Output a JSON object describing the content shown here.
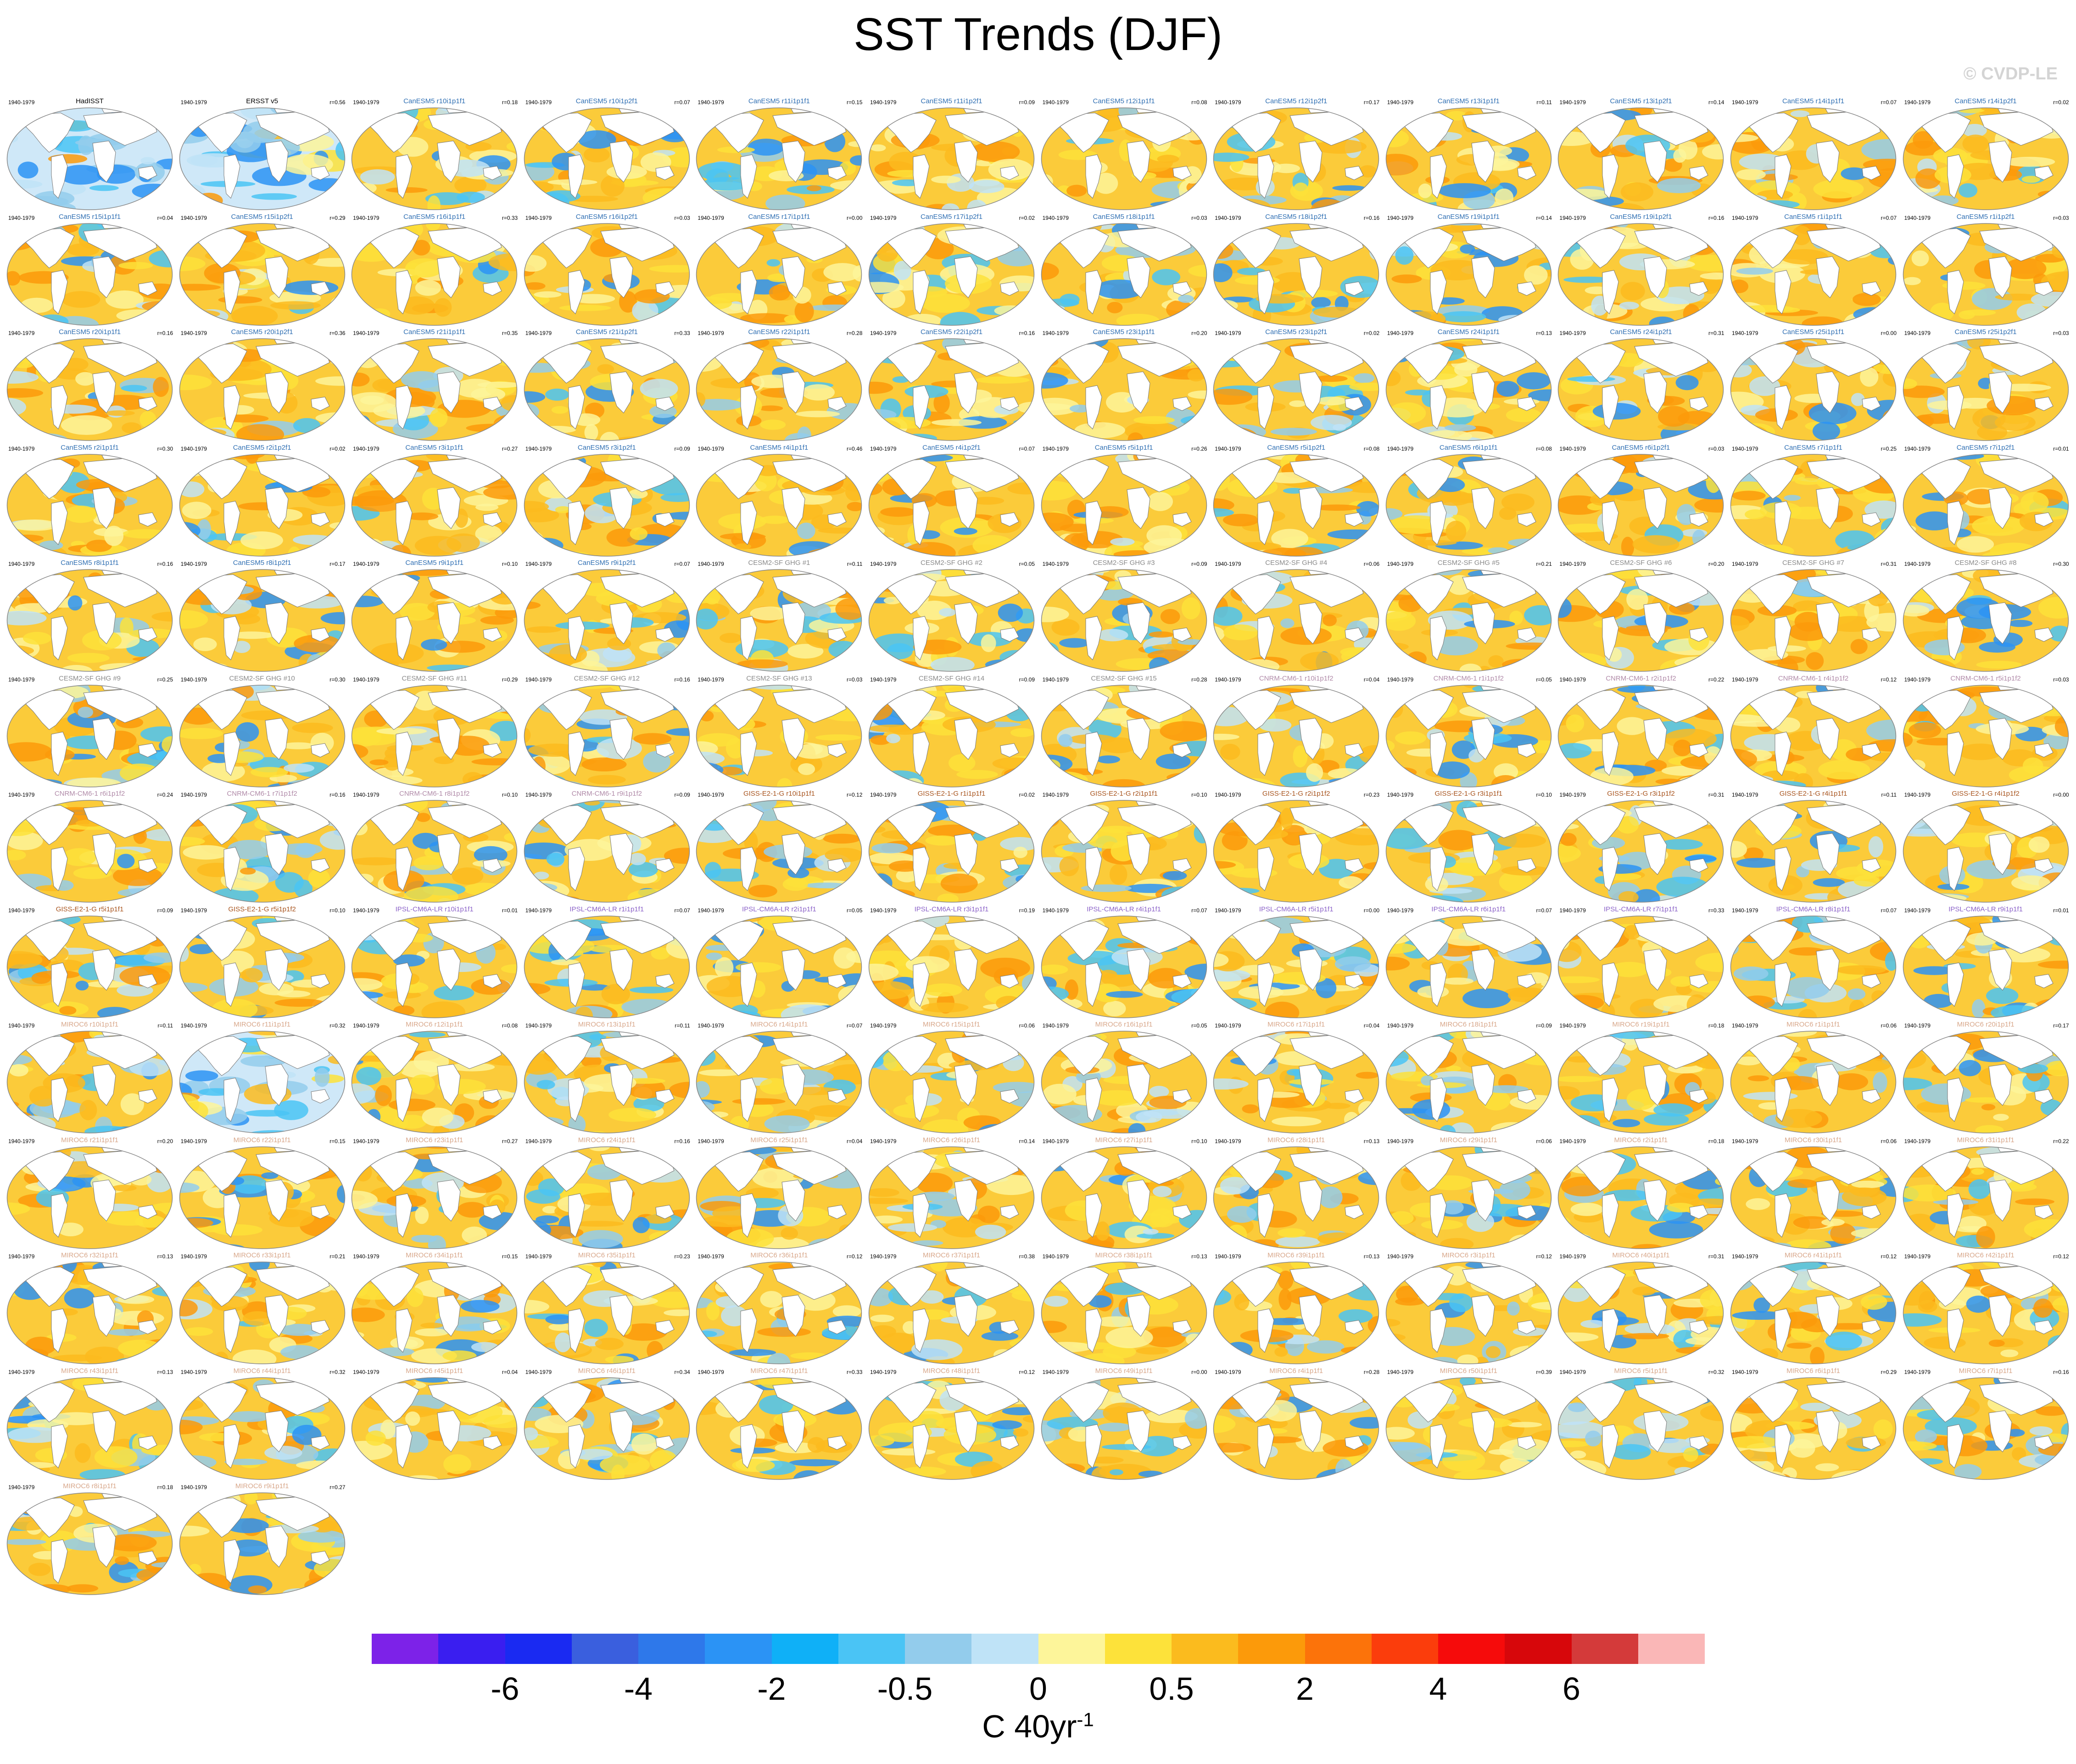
{
  "title": "SST Trends (DJF)",
  "watermark": "© CVDP-LE",
  "chart_data": {
    "type": "map-panel-grid",
    "title": "SST Trends (DJF)",
    "period_label": "1940-1979",
    "colorbar": {
      "colors": [
        "#7d22e8",
        "#3a1ef0",
        "#1a2af2",
        "#3a5fde",
        "#2e78ea",
        "#2b93f5",
        "#0fb0f7",
        "#4ac4f5",
        "#93ccec",
        "#bfe3f7",
        "#fdf59a",
        "#fde23a",
        "#fbbb1e",
        "#fc9a0a",
        "#fc730a",
        "#fb3d0c",
        "#f60b0b",
        "#d7070b",
        "#d43a3a",
        "#fab7b7"
      ],
      "labels": [
        "-6",
        "-4",
        "-2",
        "-0.5",
        "0",
        "0.5",
        "2",
        "4",
        "6"
      ],
      "label_boundary_index": [
        2,
        4,
        6,
        8,
        10,
        12,
        14,
        16,
        18
      ],
      "units": "C 40yr",
      "units_superscript": "-1"
    },
    "panels": [
      {
        "name": "HadISST",
        "r": "",
        "col": "#000000",
        "w": 0.15
      },
      {
        "name": "ERSST v5",
        "r": "r=0.56",
        "col": "#000000",
        "w": 0.25
      },
      {
        "name": "CanESM5 r10i1p1f1",
        "r": "r=0.18",
        "col": "#2f6fb3",
        "w": 0.72
      },
      {
        "name": "CanESM5 r10i1p2f1",
        "r": "r=0.07",
        "col": "#2f6fb3",
        "w": 0.66
      },
      {
        "name": "CanESM5 r11i1p1f1",
        "r": "r=0.15",
        "col": "#2f6fb3",
        "w": 0.72
      },
      {
        "name": "CanESM5 r11i1p2f1",
        "r": "r=0.09",
        "col": "#2f6fb3",
        "w": 0.74
      },
      {
        "name": "CanESM5 r12i1p1f1",
        "r": "r=0.08",
        "col": "#2f6fb3",
        "w": 0.8
      },
      {
        "name": "CanESM5 r12i1p2f1",
        "r": "r=0.17",
        "col": "#2f6fb3",
        "w": 0.76
      },
      {
        "name": "CanESM5 r13i1p1f1",
        "r": "r=0.11",
        "col": "#2f6fb3",
        "w": 0.66
      },
      {
        "name": "CanESM5 r13i1p2f1",
        "r": "r=0.14",
        "col": "#2f6fb3",
        "w": 0.62
      },
      {
        "name": "CanESM5 r14i1p1f1",
        "r": "r=0.07",
        "col": "#2f6fb3",
        "w": 0.68
      },
      {
        "name": "CanESM5 r14i1p2f1",
        "r": "r=0.02",
        "col": "#2f6fb3",
        "w": 0.72
      },
      {
        "name": "CanESM5 r15i1p1f1",
        "r": "r=0.04",
        "col": "#2f6fb3",
        "w": 0.7
      },
      {
        "name": "CanESM5 r15i1p2f1",
        "r": "r=0.29",
        "col": "#2f6fb3",
        "w": 0.74
      },
      {
        "name": "CanESM5 r16i1p1f1",
        "r": "r=0.33",
        "col": "#2f6fb3",
        "w": 0.8
      },
      {
        "name": "CanESM5 r16i1p2f1",
        "r": "r=0.03",
        "col": "#2f6fb3",
        "w": 0.66
      },
      {
        "name": "CanESM5 r17i1p1f1",
        "r": "r=0.00",
        "col": "#2f6fb3",
        "w": 0.76
      },
      {
        "name": "CanESM5 r17i1p2f1",
        "r": "r=0.02",
        "col": "#2f6fb3",
        "w": 0.72
      },
      {
        "name": "CanESM5 r18i1p1f1",
        "r": "r=0.03",
        "col": "#2f6fb3",
        "w": 0.68
      },
      {
        "name": "CanESM5 r18i1p2f1",
        "r": "r=0.16",
        "col": "#2f6fb3",
        "w": 0.64
      },
      {
        "name": "CanESM5 r19i1p1f1",
        "r": "r=0.14",
        "col": "#2f6fb3",
        "w": 0.6
      },
      {
        "name": "CanESM5 r19i1p2f1",
        "r": "r=0.16",
        "col": "#2f6fb3",
        "w": 0.62
      },
      {
        "name": "CanESM5 r1i1p1f1",
        "r": "r=0.07",
        "col": "#2f6fb3",
        "w": 0.72
      },
      {
        "name": "CanESM5 r1i1p2f1",
        "r": "r=0.03",
        "col": "#2f6fb3",
        "w": 0.7
      },
      {
        "name": "CanESM5 r20i1p1f1",
        "r": "r=0.16",
        "col": "#2f6fb3",
        "w": 0.72
      },
      {
        "name": "CanESM5 r20i1p2f1",
        "r": "r=0.36",
        "col": "#2f6fb3",
        "w": 0.8
      },
      {
        "name": "CanESM5 r21i1p1f1",
        "r": "r=0.35",
        "col": "#2f6fb3",
        "w": 0.78
      },
      {
        "name": "CanESM5 r21i1p2f1",
        "r": "r=0.33",
        "col": "#2f6fb3",
        "w": 0.64
      },
      {
        "name": "CanESM5 r22i1p1f1",
        "r": "r=0.28",
        "col": "#2f6fb3",
        "w": 0.74
      },
      {
        "name": "CanESM5 r22i1p2f1",
        "r": "r=0.16",
        "col": "#2f6fb3",
        "w": 0.7
      },
      {
        "name": "CanESM5 r23i1p1f1",
        "r": "r=0.20",
        "col": "#2f6fb3",
        "w": 0.78
      },
      {
        "name": "CanESM5 r23i1p2f1",
        "r": "r=0.02",
        "col": "#2f6fb3",
        "w": 0.66
      },
      {
        "name": "CanESM5 r24i1p1f1",
        "r": "r=0.13",
        "col": "#2f6fb3",
        "w": 0.62
      },
      {
        "name": "CanESM5 r24i1p2f1",
        "r": "r=0.31",
        "col": "#2f6fb3",
        "w": 0.7
      },
      {
        "name": "CanESM5 r25i1p1f1",
        "r": "r=0.00",
        "col": "#2f6fb3",
        "w": 0.72
      },
      {
        "name": "CanESM5 r25i1p2f1",
        "r": "r=0.03",
        "col": "#2f6fb3",
        "w": 0.7
      },
      {
        "name": "CanESM5 r2i1p1f1",
        "r": "r=0.30",
        "col": "#2f6fb3",
        "w": 0.78
      },
      {
        "name": "CanESM5 r2i1p2f1",
        "r": "r=0.02",
        "col": "#2f6fb3",
        "w": 0.72
      },
      {
        "name": "CanESM5 r3i1p1f1",
        "r": "r=0.27",
        "col": "#2f6fb3",
        "w": 0.8
      },
      {
        "name": "CanESM5 r3i1p2f1",
        "r": "r=0.09",
        "col": "#2f6fb3",
        "w": 0.7
      },
      {
        "name": "CanESM5 r4i1p1f1",
        "r": "r=0.46",
        "col": "#2f6fb3",
        "w": 0.84
      },
      {
        "name": "CanESM5 r4i1p2f1",
        "r": "r=0.07",
        "col": "#2f6fb3",
        "w": 0.78
      },
      {
        "name": "CanESM5 r5i1p1f1",
        "r": "r=0.26",
        "col": "#2f6fb3",
        "w": 0.82
      },
      {
        "name": "CanESM5 r5i1p2f1",
        "r": "r=0.08",
        "col": "#2f6fb3",
        "w": 0.72
      },
      {
        "name": "CanESM5 r6i1p1f1",
        "r": "r=0.08",
        "col": "#2f6fb3",
        "w": 0.66
      },
      {
        "name": "CanESM5 r6i1p2f1",
        "r": "r=0.03",
        "col": "#2f6fb3",
        "w": 0.72
      },
      {
        "name": "CanESM5 r7i1p1f1",
        "r": "r=0.25",
        "col": "#2f6fb3",
        "w": 0.7
      },
      {
        "name": "CanESM5 r7i1p2f1",
        "r": "r=0.01",
        "col": "#2f6fb3",
        "w": 0.74
      },
      {
        "name": "CanESM5 r8i1p1f1",
        "r": "r=0.16",
        "col": "#2f6fb3",
        "w": 0.72
      },
      {
        "name": "CanESM5 r8i1p2f1",
        "r": "r=0.17",
        "col": "#2f6fb3",
        "w": 0.68
      },
      {
        "name": "CanESM5 r9i1p1f1",
        "r": "r=0.10",
        "col": "#2f6fb3",
        "w": 0.7
      },
      {
        "name": "CanESM5 r9i1p2f1",
        "r": "r=0.07",
        "col": "#2f6fb3",
        "w": 0.72
      },
      {
        "name": "CESM2-SF GHG #1",
        "r": "r=0.11",
        "col": "#8a8a8a",
        "w": 0.74
      },
      {
        "name": "CESM2-SF GHG #2",
        "r": "r=0.05",
        "col": "#8a8a8a",
        "w": 0.7
      },
      {
        "name": "CESM2-SF GHG #3",
        "r": "r=0.09",
        "col": "#8a8a8a",
        "w": 0.62
      },
      {
        "name": "CESM2-SF GHG #4",
        "r": "r=0.06",
        "col": "#8a8a8a",
        "w": 0.58
      },
      {
        "name": "CESM2-SF GHG #5",
        "r": "r=0.21",
        "col": "#8a8a8a",
        "w": 0.56
      },
      {
        "name": "CESM2-SF GHG #6",
        "r": "r=0.20",
        "col": "#8a8a8a",
        "w": 0.66
      },
      {
        "name": "CESM2-SF GHG #7",
        "r": "r=0.31",
        "col": "#8a8a8a",
        "w": 0.8
      },
      {
        "name": "CESM2-SF GHG #8",
        "r": "r=0.30",
        "col": "#8a8a8a",
        "w": 0.74
      },
      {
        "name": "CESM2-SF GHG #9",
        "r": "r=0.25",
        "col": "#8a8a8a",
        "w": 0.66
      },
      {
        "name": "CESM2-SF GHG #10",
        "r": "r=0.30",
        "col": "#8a8a8a",
        "w": 0.56
      },
      {
        "name": "CESM2-SF GHG #11",
        "r": "r=0.29",
        "col": "#8a8a8a",
        "w": 0.76
      },
      {
        "name": "CESM2-SF GHG #12",
        "r": "r=0.16",
        "col": "#8a8a8a",
        "w": 0.6
      },
      {
        "name": "CESM2-SF GHG #13",
        "r": "r=0.03",
        "col": "#8a8a8a",
        "w": 0.74
      },
      {
        "name": "CESM2-SF GHG #14",
        "r": "r=0.09",
        "col": "#8a8a8a",
        "w": 0.68
      },
      {
        "name": "CESM2-SF GHG #15",
        "r": "r=0.28",
        "col": "#8a8a8a",
        "w": 0.76
      },
      {
        "name": "CNRM-CM6-1 r10i1p1f2",
        "r": "r=0.04",
        "col": "#b08aa8",
        "w": 0.74
      },
      {
        "name": "CNRM-CM6-1 r1i1p1f2",
        "r": "r=0.05",
        "col": "#b08aa8",
        "w": 0.56
      },
      {
        "name": "CNRM-CM6-1 r2i1p1f2",
        "r": "r=0.22",
        "col": "#b08aa8",
        "w": 0.72
      },
      {
        "name": "CNRM-CM6-1 r4i1p1f2",
        "r": "r=0.12",
        "col": "#b08aa8",
        "w": 0.74
      },
      {
        "name": "CNRM-CM6-1 r5i1p1f2",
        "r": "r=0.03",
        "col": "#b08aa8",
        "w": 0.68
      },
      {
        "name": "CNRM-CM6-1 r6i1p1f2",
        "r": "r=0.24",
        "col": "#b08aa8",
        "w": 0.56
      },
      {
        "name": "CNRM-CM6-1 r7i1p1f2",
        "r": "r=0.16",
        "col": "#b08aa8",
        "w": 0.5
      },
      {
        "name": "CNRM-CM6-1 r8i1p1f2",
        "r": "r=0.10",
        "col": "#b08aa8",
        "w": 0.64
      },
      {
        "name": "CNRM-CM6-1 r9i1p1f2",
        "r": "r=0.09",
        "col": "#b08aa8",
        "w": 0.66
      },
      {
        "name": "GISS-E2-1-G r10i1p1f1",
        "r": "r=0.12",
        "col": "#a8541e",
        "w": 0.6
      },
      {
        "name": "GISS-E2-1-G r1i1p1f1",
        "r": "r=0.02",
        "col": "#a8541e",
        "w": 0.6
      },
      {
        "name": "GISS-E2-1-G r2i1p1f1",
        "r": "r=0.10",
        "col": "#a8541e",
        "w": 0.64
      },
      {
        "name": "GISS-E2-1-G r2i1p1f2",
        "r": "r=0.23",
        "col": "#a8541e",
        "w": 0.64
      },
      {
        "name": "GISS-E2-1-G r3i1p1f1",
        "r": "r=0.10",
        "col": "#a8541e",
        "w": 0.56
      },
      {
        "name": "GISS-E2-1-G r3i1p1f2",
        "r": "r=0.31",
        "col": "#a8541e",
        "w": 0.72
      },
      {
        "name": "GISS-E2-1-G r4i1p1f1",
        "r": "r=0.11",
        "col": "#a8541e",
        "w": 0.5
      },
      {
        "name": "GISS-E2-1-G r4i1p1f2",
        "r": "r=0.00",
        "col": "#a8541e",
        "w": 0.66
      },
      {
        "name": "GISS-E2-1-G r5i1p1f1",
        "r": "r=0.09",
        "col": "#a8541e",
        "w": 0.56
      },
      {
        "name": "GISS-E2-1-G r5i1p1f2",
        "r": "r=0.10",
        "col": "#a8541e",
        "w": 0.52
      },
      {
        "name": "IPSL-CM6A-LR r10i1p1f1",
        "r": "r=0.01",
        "col": "#8b62c8",
        "w": 0.48
      },
      {
        "name": "IPSL-CM6A-LR r1i1p1f1",
        "r": "r=0.07",
        "col": "#8b62c8",
        "w": 0.5
      },
      {
        "name": "IPSL-CM6A-LR r2i1p1f1",
        "r": "r=0.05",
        "col": "#8b62c8",
        "w": 0.56
      },
      {
        "name": "IPSL-CM6A-LR r3i1p1f1",
        "r": "r=0.19",
        "col": "#8b62c8",
        "w": 0.88
      },
      {
        "name": "IPSL-CM6A-LR r4i1p1f1",
        "r": "r=0.07",
        "col": "#8b62c8",
        "w": 0.66
      },
      {
        "name": "IPSL-CM6A-LR r5i1p1f1",
        "r": "r=0.00",
        "col": "#8b62c8",
        "w": 0.54
      },
      {
        "name": "IPSL-CM6A-LR r6i1p1f1",
        "r": "r=0.07",
        "col": "#8b62c8",
        "w": 0.52
      },
      {
        "name": "IPSL-CM6A-LR r7i1p1f1",
        "r": "r=0.33",
        "col": "#8b62c8",
        "w": 0.76
      },
      {
        "name": "IPSL-CM6A-LR r8i1p1f1",
        "r": "r=0.07",
        "col": "#8b62c8",
        "w": 0.7
      },
      {
        "name": "IPSL-CM6A-LR r9i1p1f1",
        "r": "r=0.01",
        "col": "#8b62c8",
        "w": 0.62
      },
      {
        "name": "MIROC6 r10i1p1f1",
        "r": "r=0.11",
        "col": "#d8a78a",
        "w": 0.6
      },
      {
        "name": "MIROC6 r11i1p1f1",
        "r": "r=0.32",
        "col": "#d8a78a",
        "w": 0.36
      },
      {
        "name": "MIROC6 r12i1p1f1",
        "r": "r=0.08",
        "col": "#d8a78a",
        "w": 0.6
      },
      {
        "name": "MIROC6 r13i1p1f1",
        "r": "r=0.11",
        "col": "#d8a78a",
        "w": 0.56
      },
      {
        "name": "MIROC6 r14i1p1f1",
        "r": "r=0.07",
        "col": "#d8a78a",
        "w": 0.62
      },
      {
        "name": "MIROC6 r15i1p1f1",
        "r": "r=0.06",
        "col": "#d8a78a",
        "w": 0.6
      },
      {
        "name": "MIROC6 r16i1p1f1",
        "r": "r=0.05",
        "col": "#d8a78a",
        "w": 0.62
      },
      {
        "name": "MIROC6 r17i1p1f1",
        "r": "r=0.04",
        "col": "#d8a78a",
        "w": 0.62
      },
      {
        "name": "MIROC6 r18i1p1f1",
        "r": "r=0.09",
        "col": "#d8a78a",
        "w": 0.58
      },
      {
        "name": "MIROC6 r19i1p1f1",
        "r": "r=0.18",
        "col": "#d8a78a",
        "w": 0.7
      },
      {
        "name": "MIROC6 r1i1p1f1",
        "r": "r=0.06",
        "col": "#d8a78a",
        "w": 0.68
      },
      {
        "name": "MIROC6 r20i1p1f1",
        "r": "r=0.17",
        "col": "#d8a78a",
        "w": 0.66
      },
      {
        "name": "MIROC6 r21i1p1f1",
        "r": "r=0.20",
        "col": "#d8a78a",
        "w": 0.7
      },
      {
        "name": "MIROC6 r22i1p1f1",
        "r": "r=0.15",
        "col": "#d8a78a",
        "w": 0.64
      },
      {
        "name": "MIROC6 r23i1p1f1",
        "r": "r=0.27",
        "col": "#d8a78a",
        "w": 0.68
      },
      {
        "name": "MIROC6 r24i1p1f1",
        "r": "r=0.16",
        "col": "#d8a78a",
        "w": 0.5
      },
      {
        "name": "MIROC6 r25i1p1f1",
        "r": "r=0.04",
        "col": "#d8a78a",
        "w": 0.66
      },
      {
        "name": "MIROC6 r26i1p1f1",
        "r": "r=0.14",
        "col": "#d8a78a",
        "w": 0.6
      },
      {
        "name": "MIROC6 r27i1p1f1",
        "r": "r=0.10",
        "col": "#d8a78a",
        "w": 0.62
      },
      {
        "name": "MIROC6 r28i1p1f1",
        "r": "r=0.13",
        "col": "#d8a78a",
        "w": 0.6
      },
      {
        "name": "MIROC6 r29i1p1f1",
        "r": "r=0.06",
        "col": "#d8a78a",
        "w": 0.62
      },
      {
        "name": "MIROC6 r2i1p1f1",
        "r": "r=0.18",
        "col": "#d8a78a",
        "w": 0.66
      },
      {
        "name": "MIROC6 r30i1p1f1",
        "r": "r=0.06",
        "col": "#d8a78a",
        "w": 0.64
      },
      {
        "name": "MIROC6 r31i1p1f1",
        "r": "r=0.22",
        "col": "#d8a78a",
        "w": 0.74
      },
      {
        "name": "MIROC6 r32i1p1f1",
        "r": "r=0.13",
        "col": "#d8a78a",
        "w": 0.68
      },
      {
        "name": "MIROC6 r33i1p1f1",
        "r": "r=0.21",
        "col": "#d8a78a",
        "w": 0.7
      },
      {
        "name": "MIROC6 r34i1p1f1",
        "r": "r=0.15",
        "col": "#d8a78a",
        "w": 0.6
      },
      {
        "name": "MIROC6 r35i1p1f1",
        "r": "r=0.23",
        "col": "#d8a78a",
        "w": 0.68
      },
      {
        "name": "MIROC6 r36i1p1f1",
        "r": "r=0.12",
        "col": "#d8a78a",
        "w": 0.56
      },
      {
        "name": "MIROC6 r37i1p1f1",
        "r": "r=0.38",
        "col": "#d8a78a",
        "w": 0.64
      },
      {
        "name": "MIROC6 r38i1p1f1",
        "r": "r=0.13",
        "col": "#d8a78a",
        "w": 0.6
      },
      {
        "name": "MIROC6 r39i1p1f1",
        "r": "r=0.13",
        "col": "#d8a78a",
        "w": 0.74
      },
      {
        "name": "MIROC6 r3i1p1f1",
        "r": "r=0.12",
        "col": "#d8a78a",
        "w": 0.66
      },
      {
        "name": "MIROC6 r40i1p1f1",
        "r": "r=0.31",
        "col": "#d8a78a",
        "w": 0.66
      },
      {
        "name": "MIROC6 r41i1p1f1",
        "r": "r=0.12",
        "col": "#d8a78a",
        "w": 0.62
      },
      {
        "name": "MIROC6 r42i1p1f1",
        "r": "r=0.12",
        "col": "#d8a78a",
        "w": 0.7
      },
      {
        "name": "MIROC6 r43i1p1f1",
        "r": "r=0.13",
        "col": "#d8a78a",
        "w": 0.5
      },
      {
        "name": "MIROC6 r44i1p1f1",
        "r": "r=0.32",
        "col": "#d8a78a",
        "w": 0.58
      },
      {
        "name": "MIROC6 r45i1p1f1",
        "r": "r=0.04",
        "col": "#d8a78a",
        "w": 0.64
      },
      {
        "name": "MIROC6 r46i1p1f1",
        "r": "r=0.34",
        "col": "#d8a78a",
        "w": 0.62
      },
      {
        "name": "MIROC6 r47i1p1f1",
        "r": "r=0.33",
        "col": "#d8a78a",
        "w": 0.66
      },
      {
        "name": "MIROC6 r48i1p1f1",
        "r": "r=0.12",
        "col": "#d8a78a",
        "w": 0.56
      },
      {
        "name": "MIROC6 r49i1p1f1",
        "r": "r=0.00",
        "col": "#d8a78a",
        "w": 0.6
      },
      {
        "name": "MIROC6 r4i1p1f1",
        "r": "r=0.28",
        "col": "#d8a78a",
        "w": 0.64
      },
      {
        "name": "MIROC6 r50i1p1f1",
        "r": "r=0.39",
        "col": "#d8a78a",
        "w": 0.66
      },
      {
        "name": "MIROC6 r5i1p1f1",
        "r": "r=0.32",
        "col": "#d8a78a",
        "w": 0.6
      },
      {
        "name": "MIROC6 r6i1p1f1",
        "r": "r=0.29",
        "col": "#d8a78a",
        "w": 0.64
      },
      {
        "name": "MIROC6 r7i1p1f1",
        "r": "r=0.16",
        "col": "#d8a78a",
        "w": 0.58
      },
      {
        "name": "MIROC6 r8i1p1f1",
        "r": "r=0.18",
        "col": "#d8a78a",
        "w": 0.64
      },
      {
        "name": "MIROC6 r9i1p1f1",
        "r": "r=0.27",
        "col": "#d8a78a",
        "w": 0.62
      }
    ]
  }
}
